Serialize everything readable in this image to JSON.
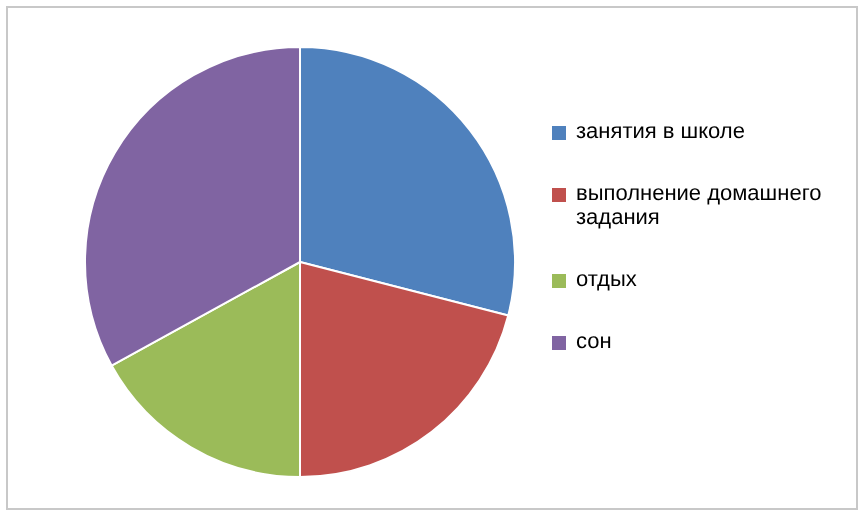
{
  "chart_data": {
    "type": "pie",
    "categories": [
      "занятия в школе",
      "выполнение домашнего задания",
      "отдых",
      "сон"
    ],
    "values": [
      29,
      21,
      17,
      33
    ],
    "colors": [
      "#4f81bd",
      "#c0504d",
      "#9bbb59",
      "#8064a2"
    ],
    "legend": "right"
  }
}
